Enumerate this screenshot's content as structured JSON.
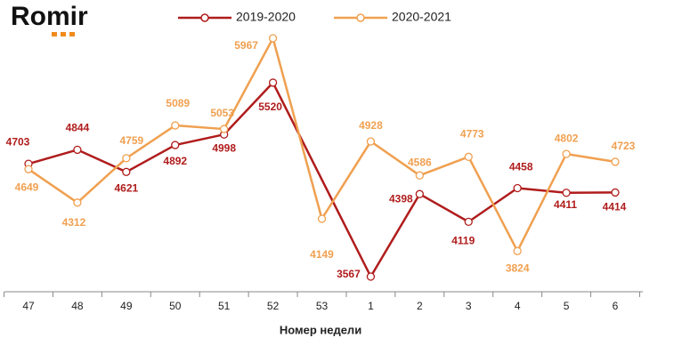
{
  "logo": "Romir",
  "chart_data": {
    "type": "line",
    "x_label": "Номер недели",
    "categories": [
      "47",
      "48",
      "49",
      "50",
      "51",
      "52",
      "53",
      "1",
      "2",
      "3",
      "4",
      "5",
      "6"
    ],
    "series": [
      {
        "name": "2019-2020",
        "color": "#b01c1c",
        "values": [
          4703,
          4844,
          4621,
          4892,
          4998,
          5520,
          null,
          3567,
          4398,
          4119,
          4458,
          4411,
          4414
        ]
      },
      {
        "name": "2020-2021",
        "color": "#f0a050",
        "values": [
          4649,
          4312,
          4759,
          5089,
          5053,
          5967,
          4149,
          4928,
          4586,
          4773,
          3824,
          4802,
          4723
        ]
      }
    ],
    "grid": false
  }
}
